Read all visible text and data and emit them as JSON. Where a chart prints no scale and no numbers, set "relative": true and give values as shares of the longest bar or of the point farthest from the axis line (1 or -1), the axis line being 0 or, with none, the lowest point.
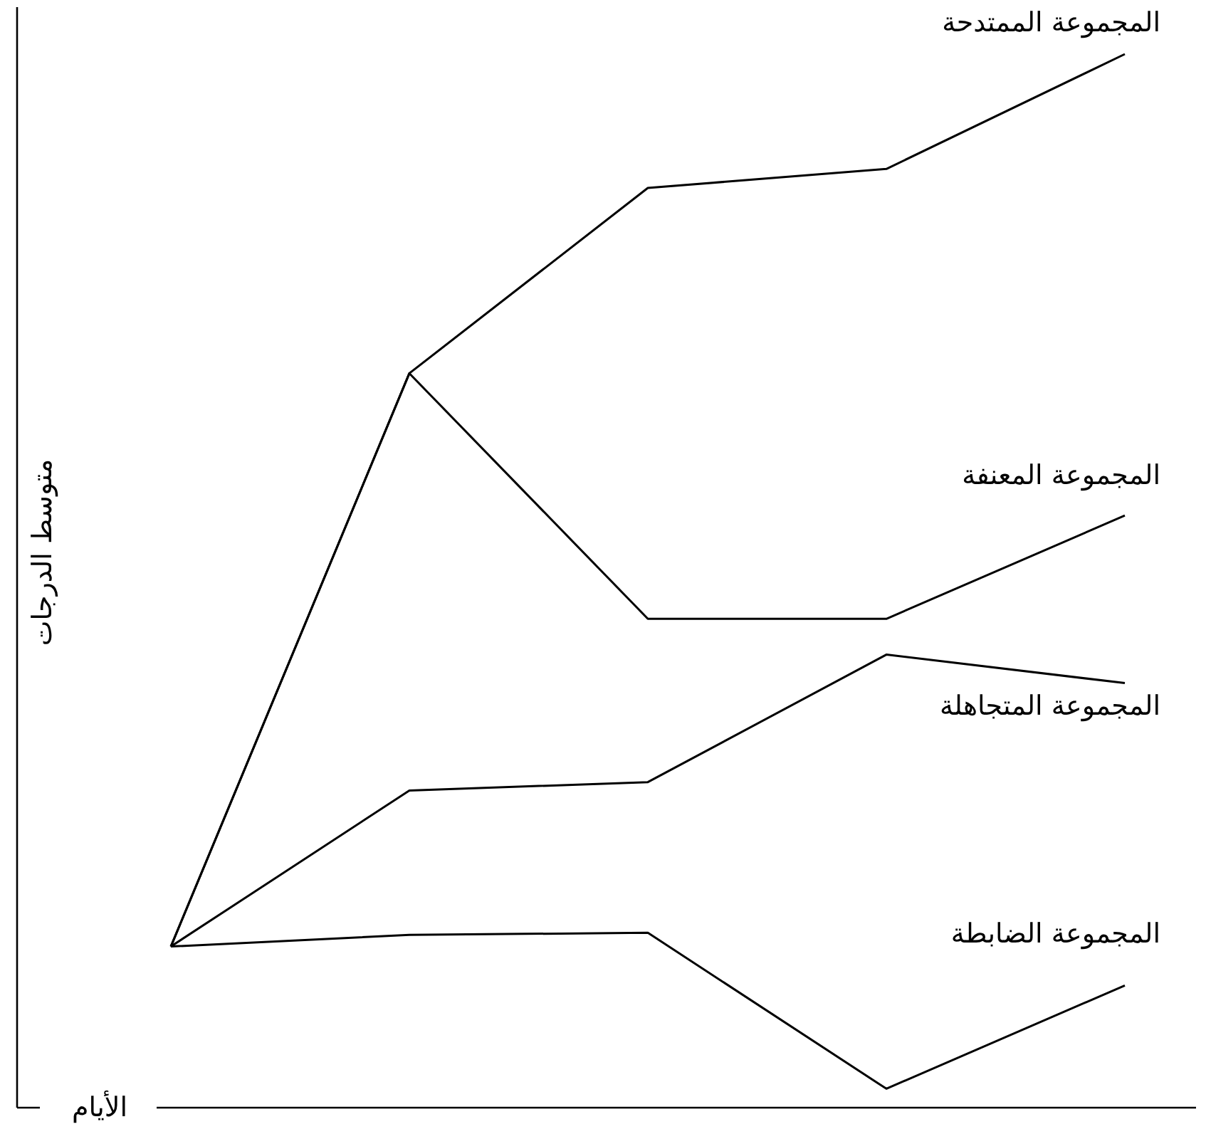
{
  "chart_data": {
    "type": "line",
    "relative": true,
    "xlabel": "الأيام",
    "ylabel": "متوسط الدرجات",
    "line_style": "solid",
    "categories": [
      null,
      null,
      null,
      null,
      null
    ],
    "series": [
      {
        "name": "المجموعة الممتدحة",
        "color": "#000000",
        "values": [
          0.153,
          0.697,
          0.873,
          0.891,
          1
        ]
      },
      {
        "name": "المجموعة المعنفة",
        "color": "#000000",
        "values": [
          0.153,
          0.697,
          0.464,
          0.464,
          0.562
        ]
      },
      {
        "name": "المجموعة المتجاهلة",
        "color": "#000000",
        "values": [
          0.153,
          0.301,
          0.309,
          0.43,
          0.403
        ]
      },
      {
        "name": "المجموعة الضابطة",
        "color": "#000000",
        "values": [
          0.153,
          0.164,
          0.166,
          0.018,
          0.116
        ]
      }
    ]
  }
}
